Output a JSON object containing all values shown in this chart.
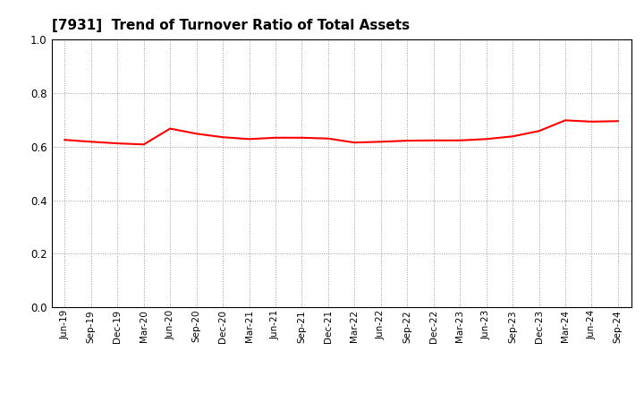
{
  "title": "[7931]  Trend of Turnover Ratio of Total Assets",
  "title_fontsize": 11,
  "title_fontweight": "bold",
  "line_color": "#FF0000",
  "line_width": 1.5,
  "background_color": "#FFFFFF",
  "grid_color": "#999999",
  "ylim": [
    0.0,
    1.0
  ],
  "yticks": [
    0.0,
    0.2,
    0.4,
    0.6,
    0.8,
    1.0
  ],
  "x_labels": [
    "Jun-19",
    "Sep-19",
    "Dec-19",
    "Mar-20",
    "Jun-20",
    "Sep-20",
    "Dec-20",
    "Mar-21",
    "Jun-21",
    "Sep-21",
    "Dec-21",
    "Mar-22",
    "Jun-22",
    "Sep-22",
    "Dec-22",
    "Mar-23",
    "Jun-23",
    "Sep-23",
    "Dec-23",
    "Mar-24",
    "Jun-24",
    "Sep-24"
  ],
  "values": [
    0.625,
    0.618,
    0.612,
    0.608,
    0.667,
    0.648,
    0.635,
    0.628,
    0.633,
    0.633,
    0.63,
    0.615,
    0.618,
    0.622,
    0.623,
    0.623,
    0.628,
    0.638,
    0.658,
    0.698,
    0.693,
    0.695
  ]
}
